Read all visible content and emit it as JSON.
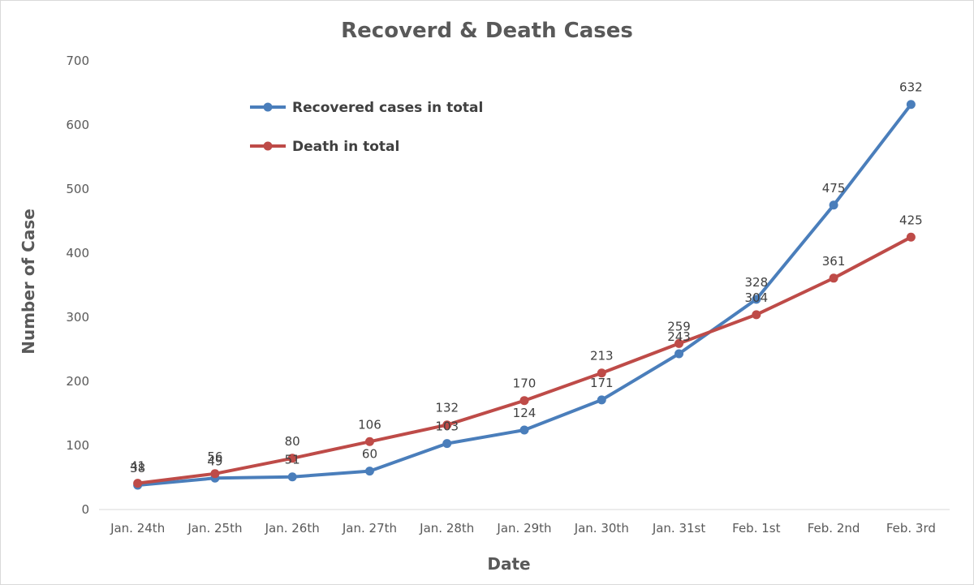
{
  "chart_data": {
    "type": "line",
    "title": "Recoverd & Death Cases",
    "xlabel": "Date",
    "ylabel": "Number of Case",
    "ylim": [
      0,
      700
    ],
    "ytick_step": 100,
    "grid": false,
    "legend_position": "top-left",
    "categories": [
      "Jan. 24th",
      "Jan. 25th",
      "Jan. 26th",
      "Jan. 27th",
      "Jan. 28th",
      "Jan. 29th",
      "Jan. 30th",
      "Jan. 31st",
      "Feb. 1st",
      "Feb. 2nd",
      "Feb. 3rd"
    ],
    "series": [
      {
        "name": "Recovered cases in total",
        "color": "#4a7ebb",
        "values": [
          38,
          49,
          51,
          60,
          103,
          124,
          171,
          243,
          328,
          475,
          632
        ]
      },
      {
        "name": "Death in total",
        "color": "#be4b48",
        "values": [
          41,
          56,
          80,
          106,
          132,
          170,
          213,
          259,
          304,
          361,
          425
        ]
      }
    ]
  }
}
